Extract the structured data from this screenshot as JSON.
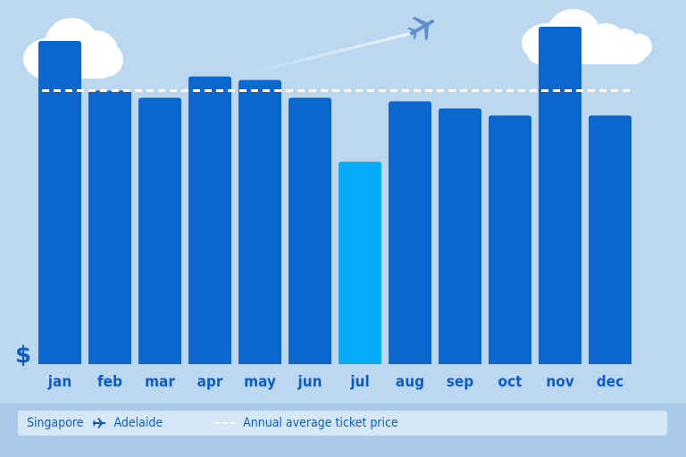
{
  "chart_data": {
    "type": "bar",
    "categories": [
      "jan",
      "feb",
      "mar",
      "apr",
      "may",
      "jun",
      "jul",
      "aug",
      "sep",
      "oct",
      "nov",
      "dec"
    ],
    "values": [
      91,
      77,
      75,
      81,
      80,
      75,
      57,
      74,
      72,
      70,
      95,
      70
    ],
    "highlight_index": 6,
    "average": 77,
    "ylim": [
      0,
      100
    ],
    "ylabel": "$",
    "colors": {
      "bar": "#0b66cf",
      "highlight": "#06acfa",
      "average_line": "#ffffff",
      "text": "#0d5cc4"
    }
  },
  "legend": {
    "origin": "Singapore",
    "destination": "Adelaide",
    "average_label": "Annual average ticket price",
    "route_icon": "plane-icon"
  }
}
